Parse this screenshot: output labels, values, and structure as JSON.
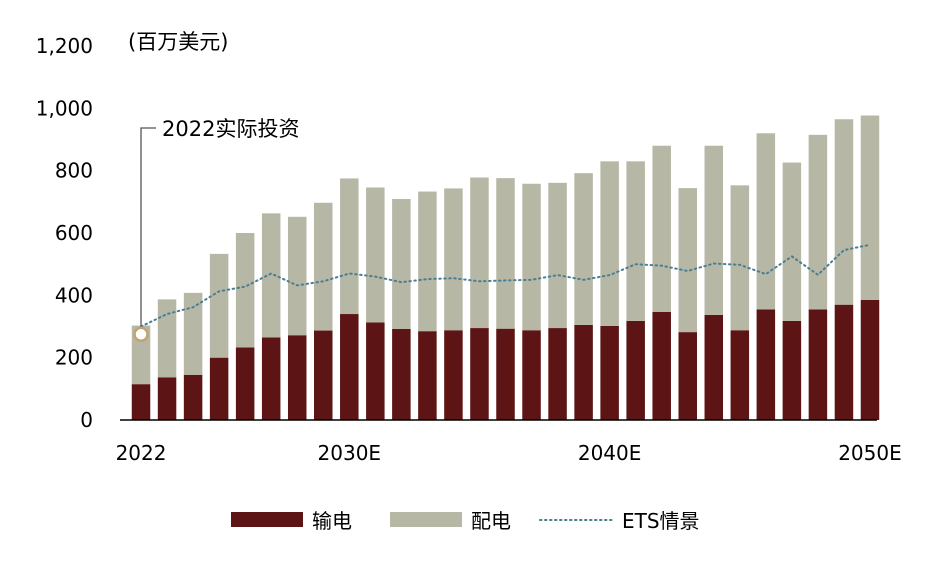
{
  "chart_data": {
    "type": "bar",
    "stacked": true,
    "unit_label": "(百万美元)",
    "categories": [
      "2022",
      "2023",
      "2024",
      "2025",
      "2026",
      "2027",
      "2028",
      "2029",
      "2030",
      "2031",
      "2032",
      "2033",
      "2034",
      "2035",
      "2036",
      "2037",
      "2038",
      "2039",
      "2040",
      "2041",
      "2042",
      "2043",
      "2044",
      "2045",
      "2046",
      "2047",
      "2048",
      "2049",
      "2050"
    ],
    "x_tick_labels": [
      {
        "category": "2022",
        "label": "2022"
      },
      {
        "category": "2030",
        "label": "2030E"
      },
      {
        "category": "2040",
        "label": "2040E"
      },
      {
        "category": "2050",
        "label": "2050E"
      }
    ],
    "ylim": [
      0,
      1200
    ],
    "y_ticks": [
      {
        "value": 0,
        "label": "0"
      },
      {
        "value": 200,
        "label": "200"
      },
      {
        "value": 400,
        "label": "400"
      },
      {
        "value": 600,
        "label": "600"
      },
      {
        "value": 800,
        "label": "800"
      },
      {
        "value": 1000,
        "label": "1,000"
      },
      {
        "value": 1200,
        "label": "1,200"
      }
    ],
    "grid": false,
    "legend_position": "bottom",
    "series": [
      {
        "name": "输电",
        "kind": "bar",
        "color": "#5c1414",
        "values": [
          115,
          137,
          145,
          200,
          233,
          265,
          272,
          287,
          340,
          313,
          292,
          285,
          288,
          295,
          293,
          288,
          295,
          305,
          302,
          318,
          347,
          282,
          337,
          288,
          355,
          318,
          355,
          370,
          385
        ]
      },
      {
        "name": "配电",
        "kind": "bar",
        "color": "#b7b7a6",
        "values": [
          188,
          250,
          263,
          333,
          367,
          398,
          380,
          410,
          435,
          433,
          417,
          448,
          455,
          483,
          483,
          470,
          466,
          487,
          528,
          512,
          533,
          462,
          543,
          465,
          565,
          508,
          560,
          595,
          592
        ]
      },
      {
        "name": "ETS情景",
        "kind": "line",
        "style": "dotted",
        "color": "#4a7e93",
        "values": [
          300,
          340,
          362,
          413,
          428,
          470,
          432,
          445,
          470,
          460,
          442,
          452,
          455,
          445,
          448,
          450,
          465,
          450,
          465,
          500,
          495,
          478,
          502,
          498,
          468,
          525,
          466,
          545,
          562
        ]
      }
    ],
    "annotations": [
      {
        "text": "2022实际投资",
        "category": "2022",
        "value": 275
      }
    ]
  }
}
